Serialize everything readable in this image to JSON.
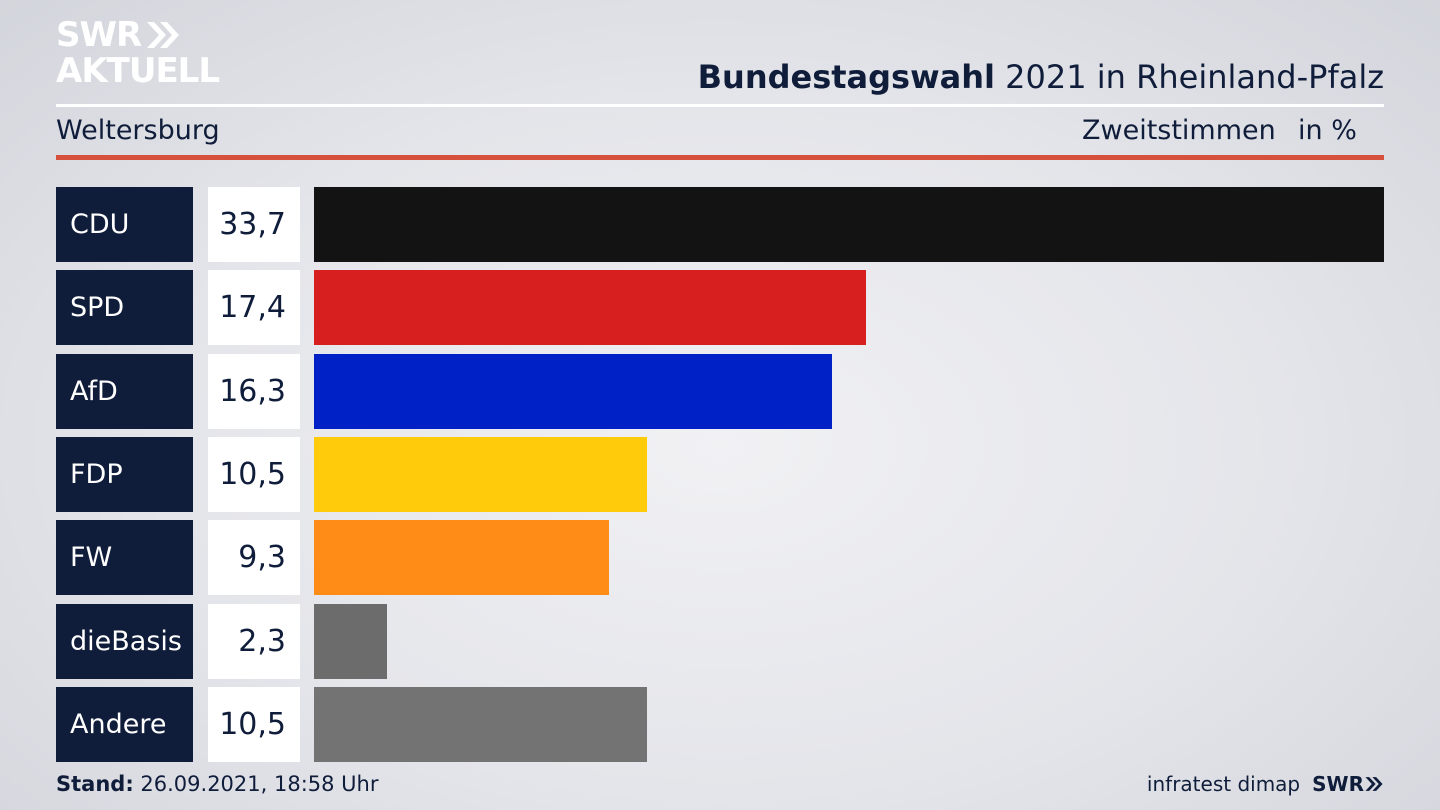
{
  "brand": {
    "line1": "SWR",
    "line2": "AKTUELL",
    "footer_mark": "SWR"
  },
  "header": {
    "title_bold": "Bundestagswahl",
    "title_rest": " 2021 in Rheinland-Pfalz"
  },
  "subheader": {
    "place": "Weltersburg",
    "metric": "Zweitstimmen",
    "unit": "in %"
  },
  "footer": {
    "stand_label": "Stand:",
    "stand_value": " 26.09.2021, 18:58 Uhr",
    "source": "infratest dimap"
  },
  "colors": {
    "navy": "#0f1d3a",
    "red_rule": "#d6503c"
  },
  "chart_data": {
    "type": "bar",
    "orientation": "horizontal",
    "title": "",
    "xlabel": "",
    "ylabel": "",
    "xlim": [
      0,
      33.7
    ],
    "categories": [
      "CDU",
      "SPD",
      "AfD",
      "FDP",
      "FW",
      "dieBasis",
      "Andere"
    ],
    "values": [
      33.7,
      17.4,
      16.3,
      10.5,
      9.3,
      2.3,
      10.5
    ],
    "value_labels": [
      "33,7",
      "17,4",
      "16,3",
      "10,5",
      "9,3",
      "2,3",
      "10,5"
    ],
    "bar_colors": [
      "#131313",
      "#d81f1f",
      "#0021c6",
      "#ffcb0a",
      "#ff8c17",
      "#6c6c6c",
      "#737373"
    ]
  }
}
